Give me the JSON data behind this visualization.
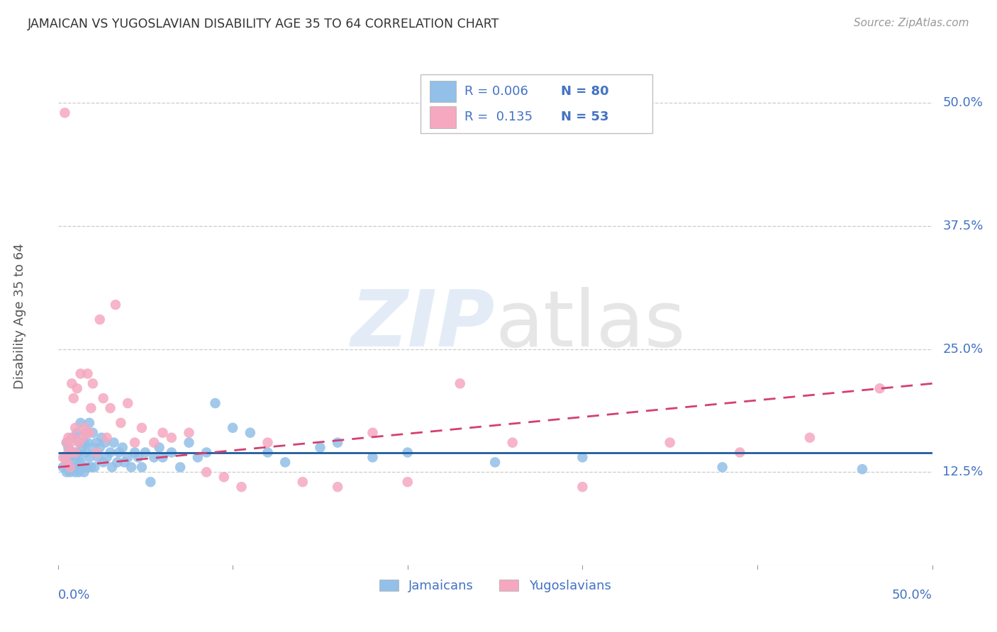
{
  "title": "JAMAICAN VS YUGOSLAVIAN DISABILITY AGE 35 TO 64 CORRELATION CHART",
  "source": "Source: ZipAtlas.com",
  "xlabel_bottom_left": "0.0%",
  "xlabel_bottom_right": "50.0%",
  "ylabel": "Disability Age 35 to 64",
  "yticks": [
    "12.5%",
    "25.0%",
    "37.5%",
    "50.0%"
  ],
  "ytick_vals": [
    0.125,
    0.25,
    0.375,
    0.5
  ],
  "xlim": [
    0.0,
    0.5
  ],
  "ylim": [
    0.03,
    0.55
  ],
  "jamaican_color": "#92c0e8",
  "yugoslavian_color": "#f5a8c0",
  "trend_jamaican_color": "#1f5c9e",
  "trend_yugoslavian_color": "#d44070",
  "background_color": "#ffffff",
  "grid_color": "#cccccc",
  "blue_text_color": "#4472c4",
  "jamaican_x": [
    0.003,
    0.004,
    0.005,
    0.005,
    0.006,
    0.006,
    0.007,
    0.007,
    0.008,
    0.008,
    0.008,
    0.009,
    0.009,
    0.01,
    0.01,
    0.01,
    0.011,
    0.011,
    0.011,
    0.012,
    0.012,
    0.013,
    0.013,
    0.013,
    0.014,
    0.014,
    0.015,
    0.015,
    0.016,
    0.016,
    0.017,
    0.017,
    0.018,
    0.018,
    0.019,
    0.02,
    0.02,
    0.021,
    0.022,
    0.023,
    0.024,
    0.025,
    0.026,
    0.027,
    0.028,
    0.03,
    0.031,
    0.032,
    0.034,
    0.035,
    0.037,
    0.038,
    0.04,
    0.042,
    0.044,
    0.046,
    0.048,
    0.05,
    0.053,
    0.055,
    0.058,
    0.06,
    0.065,
    0.07,
    0.075,
    0.08,
    0.085,
    0.09,
    0.1,
    0.11,
    0.12,
    0.13,
    0.15,
    0.16,
    0.18,
    0.2,
    0.25,
    0.3,
    0.38,
    0.46
  ],
  "jamaican_y": [
    0.13,
    0.14,
    0.125,
    0.155,
    0.13,
    0.15,
    0.125,
    0.14,
    0.13,
    0.145,
    0.16,
    0.13,
    0.145,
    0.125,
    0.14,
    0.16,
    0.13,
    0.145,
    0.165,
    0.125,
    0.14,
    0.135,
    0.155,
    0.175,
    0.13,
    0.15,
    0.125,
    0.155,
    0.145,
    0.165,
    0.13,
    0.155,
    0.14,
    0.175,
    0.13,
    0.15,
    0.165,
    0.13,
    0.155,
    0.14,
    0.15,
    0.16,
    0.135,
    0.155,
    0.14,
    0.145,
    0.13,
    0.155,
    0.135,
    0.145,
    0.15,
    0.135,
    0.14,
    0.13,
    0.145,
    0.14,
    0.13,
    0.145,
    0.115,
    0.14,
    0.15,
    0.14,
    0.145,
    0.13,
    0.155,
    0.14,
    0.145,
    0.195,
    0.17,
    0.165,
    0.145,
    0.135,
    0.15,
    0.155,
    0.14,
    0.145,
    0.135,
    0.14,
    0.13,
    0.128
  ],
  "yugoslavian_x": [
    0.003,
    0.004,
    0.005,
    0.005,
    0.006,
    0.006,
    0.007,
    0.007,
    0.008,
    0.008,
    0.009,
    0.009,
    0.01,
    0.01,
    0.011,
    0.012,
    0.013,
    0.014,
    0.015,
    0.016,
    0.017,
    0.018,
    0.019,
    0.02,
    0.022,
    0.024,
    0.026,
    0.028,
    0.03,
    0.033,
    0.036,
    0.04,
    0.044,
    0.048,
    0.055,
    0.06,
    0.065,
    0.075,
    0.085,
    0.095,
    0.105,
    0.12,
    0.14,
    0.16,
    0.18,
    0.2,
    0.23,
    0.26,
    0.3,
    0.35,
    0.39,
    0.43,
    0.47
  ],
  "yugoslavian_y": [
    0.14,
    0.49,
    0.135,
    0.155,
    0.145,
    0.16,
    0.13,
    0.155,
    0.145,
    0.215,
    0.16,
    0.2,
    0.145,
    0.17,
    0.21,
    0.155,
    0.225,
    0.16,
    0.17,
    0.165,
    0.225,
    0.165,
    0.19,
    0.215,
    0.145,
    0.28,
    0.2,
    0.16,
    0.19,
    0.295,
    0.175,
    0.195,
    0.155,
    0.17,
    0.155,
    0.165,
    0.16,
    0.165,
    0.125,
    0.12,
    0.11,
    0.155,
    0.115,
    0.11,
    0.165,
    0.115,
    0.215,
    0.155,
    0.11,
    0.155,
    0.145,
    0.16,
    0.21
  ],
  "trend_jam_x0": 0.0,
  "trend_jam_x1": 0.5,
  "trend_jam_y0": 0.145,
  "trend_jam_y1": 0.145,
  "trend_yug_x0": 0.0,
  "trend_yug_x1": 0.5,
  "trend_yug_y0": 0.13,
  "trend_yug_y1": 0.215
}
